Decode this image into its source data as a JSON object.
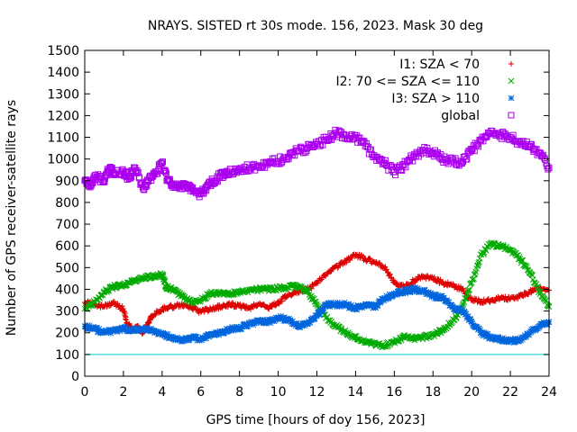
{
  "chart_data": {
    "type": "scatter",
    "title": "NRAYS. SISTED rt 30s mode. 156, 2023. Mask 30 deg",
    "xlabel": "GPS time [hours of doy 156, 2023]",
    "ylabel": "Number of GPS receiver-satellite rays",
    "xlim": [
      0,
      24
    ],
    "ylim": [
      0,
      1500
    ],
    "xticks": [
      "0",
      "2",
      "4",
      "6",
      "8",
      "10",
      "12",
      "14",
      "16",
      "18",
      "20",
      "22",
      "24"
    ],
    "yticks": [
      "0",
      "100",
      "200",
      "300",
      "400",
      "500",
      "600",
      "700",
      "800",
      "900",
      "1000",
      "1100",
      "1200",
      "1300",
      "1400",
      "1500"
    ],
    "grid": false,
    "legend_position": "top-right",
    "reference_line": {
      "y": 100,
      "color": "#00ccdd"
    },
    "series": [
      {
        "name": "I1: SZA < 70",
        "marker": "+",
        "color": "#dd0000",
        "x": [
          0,
          0.5,
          1,
          1.5,
          2,
          2.2,
          2.5,
          2.8,
          3,
          3.3,
          3.5,
          4,
          4.5,
          5,
          5.5,
          6,
          6.5,
          7,
          7.5,
          8,
          8.5,
          9,
          9.5,
          10,
          10.5,
          11,
          11.5,
          12,
          12.5,
          13,
          13.5,
          14,
          14.5,
          15,
          15.5,
          16,
          16.5,
          17,
          17.5,
          18,
          18.5,
          19,
          19.5,
          20,
          20.5,
          21,
          21.5,
          22,
          22.5,
          23,
          23.5,
          24
        ],
        "y": [
          340,
          330,
          320,
          335,
          310,
          240,
          220,
          225,
          200,
          250,
          280,
          310,
          320,
          330,
          320,
          295,
          310,
          320,
          330,
          325,
          315,
          330,
          315,
          340,
          370,
          390,
          400,
          430,
          470,
          505,
          530,
          560,
          540,
          525,
          500,
          430,
          410,
          440,
          460,
          450,
          430,
          420,
          400,
          350,
          345,
          350,
          360,
          355,
          370,
          390,
          410,
          395
        ]
      },
      {
        "name": "I2: 70 <= SZA <= 110",
        "marker": "x",
        "color": "#00aa00",
        "x": [
          0,
          0.5,
          1,
          1.5,
          2,
          2.5,
          3,
          3.5,
          4,
          4.2,
          4.5,
          5,
          5.5,
          6,
          6.5,
          7,
          7.5,
          8,
          8.5,
          9,
          9.5,
          10,
          10.5,
          11,
          11.5,
          12,
          12.5,
          13,
          13.5,
          14,
          14.5,
          15,
          15.5,
          16,
          16.5,
          17,
          17.5,
          18,
          18.5,
          19,
          19.5,
          20,
          20.5,
          21,
          21.5,
          22,
          22.5,
          23,
          23.5,
          24
        ],
        "y": [
          310,
          340,
          390,
          410,
          420,
          440,
          450,
          460,
          470,
          410,
          400,
          370,
          340,
          350,
          380,
          385,
          380,
          390,
          395,
          400,
          400,
          405,
          410,
          415,
          390,
          330,
          270,
          230,
          200,
          180,
          160,
          150,
          140,
          160,
          180,
          175,
          180,
          190,
          210,
          250,
          320,
          430,
          560,
          610,
          600,
          580,
          540,
          480,
          390,
          320
        ]
      },
      {
        "name": "I3: SZA > 110",
        "marker": "*",
        "color": "#0066dd",
        "x": [
          0,
          0.5,
          1,
          1.5,
          2,
          2.5,
          3,
          3.5,
          4,
          4.5,
          5,
          5.5,
          6,
          6.5,
          7,
          7.5,
          8,
          8.5,
          9,
          9.5,
          10,
          10.5,
          11,
          11.5,
          12,
          12.5,
          13,
          13.5,
          14,
          14.5,
          15,
          15.5,
          16,
          16.5,
          17,
          17.5,
          18,
          18.5,
          19,
          19.5,
          20,
          20.5,
          21,
          21.5,
          22,
          22.5,
          23,
          23.5,
          24
        ],
        "y": [
          230,
          220,
          200,
          210,
          220,
          210,
          220,
          210,
          190,
          180,
          160,
          180,
          170,
          190,
          200,
          220,
          220,
          240,
          250,
          250,
          270,
          260,
          230,
          240,
          280,
          330,
          330,
          330,
          310,
          330,
          320,
          360,
          380,
          390,
          400,
          390,
          370,
          360,
          320,
          300,
          250,
          200,
          180,
          170,
          160,
          170,
          200,
          230,
          250
        ]
      },
      {
        "name": "global",
        "marker": "square",
        "color": "#aa00ee",
        "x": [
          0,
          0.3,
          0.6,
          1,
          1.3,
          1.6,
          2,
          2.3,
          2.6,
          3,
          3.3,
          3.6,
          4,
          4.3,
          4.6,
          5,
          5.3,
          5.6,
          6,
          6.3,
          6.6,
          7,
          7.3,
          7.6,
          8,
          8.5,
          9,
          9.5,
          10,
          10.5,
          11,
          11.5,
          12,
          12.5,
          13,
          13.5,
          14,
          14.5,
          15,
          15.5,
          16,
          16.5,
          17,
          17.5,
          18,
          18.5,
          19,
          19.5,
          20,
          20.5,
          21,
          21.5,
          22,
          22.5,
          23,
          23.5,
          24
        ],
        "y": [
          900,
          880,
          920,
          900,
          960,
          930,
          940,
          910,
          960,
          870,
          900,
          930,
          980,
          900,
          880,
          880,
          870,
          850,
          840,
          870,
          900,
          920,
          930,
          940,
          950,
          960,
          970,
          980,
          990,
          1010,
          1040,
          1050,
          1070,
          1090,
          1120,
          1110,
          1100,
          1060,
          1010,
          980,
          940,
          970,
          1010,
          1040,
          1030,
          1000,
          990,
          980,
          1040,
          1090,
          1130,
          1110,
          1100,
          1080,
          1060,
          1030,
          960
        ]
      }
    ]
  }
}
